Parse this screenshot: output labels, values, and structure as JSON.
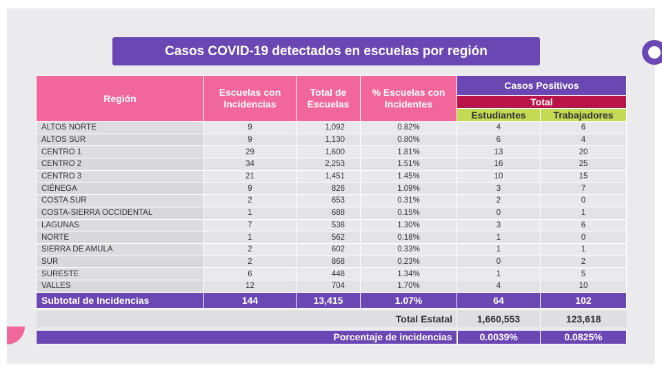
{
  "title": "Casos COVID-19 detectados en escuelas por región",
  "headers": {
    "region": "Región",
    "escuelas_con_incidencias": "Escuelas con Incidencias",
    "total_escuelas": "Total de Escuelas",
    "porcentaje_escuelas": "% Escuelas con Incidentes",
    "casos_positivos": "Casos Positivos",
    "total": "Total",
    "estudiantes": "Estudiantes",
    "trabajadores": "Trabajadores"
  },
  "rows": [
    {
      "region": "ALTOS NORTE",
      "escuelas": "9",
      "total": "1,092",
      "pct": "0.82%",
      "estudiantes": "4",
      "trabajadores": "6"
    },
    {
      "region": "ALTOS SUR",
      "escuelas": "9",
      "total": "1,130",
      "pct": "0.80%",
      "estudiantes": "6",
      "trabajadores": "4"
    },
    {
      "region": "CENTRO 1",
      "escuelas": "29",
      "total": "1,600",
      "pct": "1.81%",
      "estudiantes": "13",
      "trabajadores": "20"
    },
    {
      "region": "CENTRO 2",
      "escuelas": "34",
      "total": "2,253",
      "pct": "1.51%",
      "estudiantes": "16",
      "trabajadores": "25"
    },
    {
      "region": "CENTRO 3",
      "escuelas": "21",
      "total": "1,451",
      "pct": "1.45%",
      "estudiantes": "10",
      "trabajadores": "15"
    },
    {
      "region": "CIÉNEGA",
      "escuelas": "9",
      "total": "826",
      "pct": "1.09%",
      "estudiantes": "3",
      "trabajadores": "7"
    },
    {
      "region": "COSTA SUR",
      "escuelas": "2",
      "total": "653",
      "pct": "0.31%",
      "estudiantes": "2",
      "trabajadores": "0"
    },
    {
      "region": "COSTA-SIERRA OCCIDENTAL",
      "escuelas": "1",
      "total": "688",
      "pct": "0.15%",
      "estudiantes": "0",
      "trabajadores": "1"
    },
    {
      "region": "LAGUNAS",
      "escuelas": "7",
      "total": "538",
      "pct": "1.30%",
      "estudiantes": "3",
      "trabajadores": "6"
    },
    {
      "region": "NORTE",
      "escuelas": "1",
      "total": "562",
      "pct": "0.18%",
      "estudiantes": "1",
      "trabajadores": "0"
    },
    {
      "region": "SIERRA DE AMULA",
      "escuelas": "2",
      "total": "602",
      "pct": "0.33%",
      "estudiantes": "1",
      "trabajadores": "1"
    },
    {
      "region": "SUR",
      "escuelas": "2",
      "total": "868",
      "pct": "0.23%",
      "estudiantes": "0",
      "trabajadores": "2"
    },
    {
      "region": "SURESTE",
      "escuelas": "6",
      "total": "448",
      "pct": "1.34%",
      "estudiantes": "1",
      "trabajadores": "5"
    },
    {
      "region": "VALLES",
      "escuelas": "12",
      "total": "704",
      "pct": "1.70%",
      "estudiantes": "4",
      "trabajadores": "10"
    }
  ],
  "subtotal": {
    "label": "Subtotal de Incidencias",
    "escuelas": "144",
    "total": "13,415",
    "pct": "1.07%",
    "estudiantes": "64",
    "trabajadores": "102"
  },
  "total_estatal": {
    "label": "Total Estatal",
    "estudiantes": "1,660,553",
    "trabajadores": "123,618"
  },
  "porcentaje": {
    "label": "Porcentaje de incidencias",
    "estudiantes": "0.0039%",
    "trabajadores": "0.0825%"
  },
  "colors": {
    "purple": "#6b47b3",
    "pink": "#f2679b",
    "crimson": "#b8144a",
    "green": "#c4da55"
  }
}
